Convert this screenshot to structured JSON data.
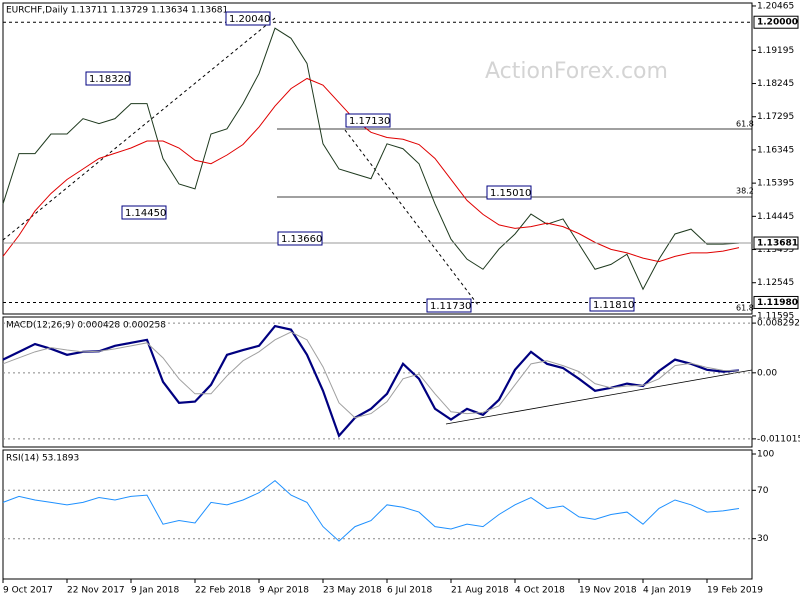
{
  "watermark": "ActionForex.com",
  "chart_data": [
    {
      "type": "line",
      "title": "EURCHF,Daily  1.13711 1.13729 1.13634 1.13681",
      "categories": [
        "9 Oct 2017",
        null,
        null,
        null,
        "22 Nov 2017",
        null,
        null,
        null,
        "9 Jan 2018",
        null,
        null,
        null,
        "22 Feb 2018",
        null,
        null,
        null,
        "9 Apr 2018",
        null,
        null,
        null,
        "23 May 2018",
        null,
        null,
        null,
        "6 Jul 2018",
        null,
        null,
        null,
        "21 Aug 2018",
        null,
        null,
        null,
        "4 Oct 2018",
        null,
        null,
        null,
        "19 Nov 2018",
        null,
        null,
        null,
        "4 Jan 2019",
        null,
        null,
        null,
        "19 Feb 2019",
        null,
        null
      ],
      "series": [
        {
          "color": "#1f3a1f",
          "values": [
            1.148,
            1.1624,
            1.1624,
            1.168,
            1.168,
            1.1724,
            1.171,
            1.1724,
            1.1767,
            1.1767,
            1.161,
            1.1537,
            1.1523,
            1.168,
            1.1695,
            1.1767,
            1.1853,
            1.1983,
            1.1954,
            1.1882,
            1.1652,
            1.158,
            1.1566,
            1.1552,
            1.1652,
            1.1638,
            1.1595,
            1.148,
            1.1379,
            1.1322,
            1.1293,
            1.1351,
            1.1394,
            1.1451,
            1.1422,
            1.1437,
            1.1365,
            1.1293,
            1.1307,
            1.1336,
            1.1236,
            1.1322,
            1.1394,
            1.1408,
            1.1365,
            1.1365,
            1.1368
          ]
        },
        {
          "color": "#e00000",
          "values": [
            1.133,
            1.139,
            1.146,
            1.151,
            1.155,
            1.158,
            1.161,
            1.1625,
            1.164,
            1.166,
            1.166,
            1.164,
            1.1605,
            1.1595,
            1.162,
            1.165,
            1.17,
            1.176,
            1.181,
            1.1839,
            1.182,
            1.177,
            1.172,
            1.1685,
            1.167,
            1.1665,
            1.165,
            1.161,
            1.155,
            1.149,
            1.145,
            1.142,
            1.141,
            1.1415,
            1.1425,
            1.1415,
            1.1395,
            1.137,
            1.135,
            1.134,
            1.1325,
            1.1315,
            1.133,
            1.134,
            1.134,
            1.1345,
            1.1355
          ]
        }
      ],
      "ylim": [
        1.1165,
        1.2055
      ],
      "yticks": [
        1.20465,
        1.19195,
        1.18245,
        1.17295,
        1.16345,
        1.15395,
        1.14445,
        1.13495,
        1.12545,
        1.11595
      ],
      "price_levels": [
        {
          "value": 1.2,
          "label": "1.20000"
        },
        {
          "value": 1.13681,
          "label": "1.13681"
        },
        {
          "value": 1.1198,
          "label": "1.11980"
        }
      ],
      "annotations": [
        "1.20040",
        "1.18320",
        "1.17130",
        "1.15010",
        "1.14450",
        "1.13660",
        "1.11730",
        "1.11810"
      ],
      "fib_labels": [
        "61.8",
        "38.2",
        "61.8"
      ]
    },
    {
      "type": "line",
      "title": "MACD(12,26,9) 0.000428 0.000258",
      "series": [
        {
          "color": "#000080",
          "values": [
            0.0022,
            0.0035,
            0.0048,
            0.004,
            0.003,
            0.0035,
            0.0036,
            0.0045,
            0.005,
            0.0055,
            -0.0015,
            -0.005,
            -0.0048,
            -0.002,
            0.003,
            0.0038,
            0.0045,
            0.0078,
            0.0072,
            0.003,
            -0.003,
            -0.0105,
            -0.0075,
            -0.006,
            -0.0035,
            0.0015,
            -0.001,
            -0.006,
            -0.0078,
            -0.006,
            -0.007,
            -0.0045,
            0.0005,
            0.0035,
            0.0015,
            0.0008,
            -0.001,
            -0.003,
            -0.0025,
            -0.0018,
            -0.0022,
            0.0003,
            0.0022,
            0.0015,
            0.0005,
            0.0002,
            0.0004
          ]
        },
        {
          "color": "#a0a0a0",
          "values": [
            0.0015,
            0.0025,
            0.0035,
            0.0042,
            0.0038,
            0.0035,
            0.0036,
            0.004,
            0.0045,
            0.005,
            0.0025,
            -0.001,
            -0.0035,
            -0.0035,
            -0.0005,
            0.002,
            0.0035,
            0.0055,
            0.0068,
            0.0055,
            0.001,
            -0.005,
            -0.0075,
            -0.0068,
            -0.0048,
            -0.001,
            -0.0002,
            -0.0035,
            -0.0065,
            -0.0068,
            -0.0066,
            -0.0055,
            -0.002,
            0.0015,
            0.002,
            0.0012,
            0.0002,
            -0.0018,
            -0.0025,
            -0.0022,
            -0.0021,
            -0.001,
            0.0012,
            0.0016,
            0.0009,
            0.0004,
            0.0003
          ]
        }
      ],
      "ylim": [
        -0.01237,
        0.009308
      ],
      "yticks": [
        0.008292,
        {
          "value": 0,
          "label": "0.00"
        },
        -0.011015
      ]
    },
    {
      "type": "line",
      "title": "RSI(14) 53.1893",
      "series": [
        {
          "color": "#1e90ff",
          "values": [
            60,
            65,
            62,
            60,
            58,
            60,
            64,
            62,
            65,
            66,
            42,
            45,
            43,
            60,
            58,
            62,
            68,
            78,
            66,
            60,
            40,
            28,
            40,
            45,
            58,
            56,
            52,
            40,
            38,
            42,
            40,
            50,
            58,
            64,
            55,
            57,
            48,
            46,
            50,
            52,
            42,
            55,
            62,
            58,
            52,
            53,
            55
          ]
        }
      ],
      "ylim": [
        -3.3,
        103.3
      ],
      "yticks": [
        100,
        70,
        30
      ]
    }
  ]
}
